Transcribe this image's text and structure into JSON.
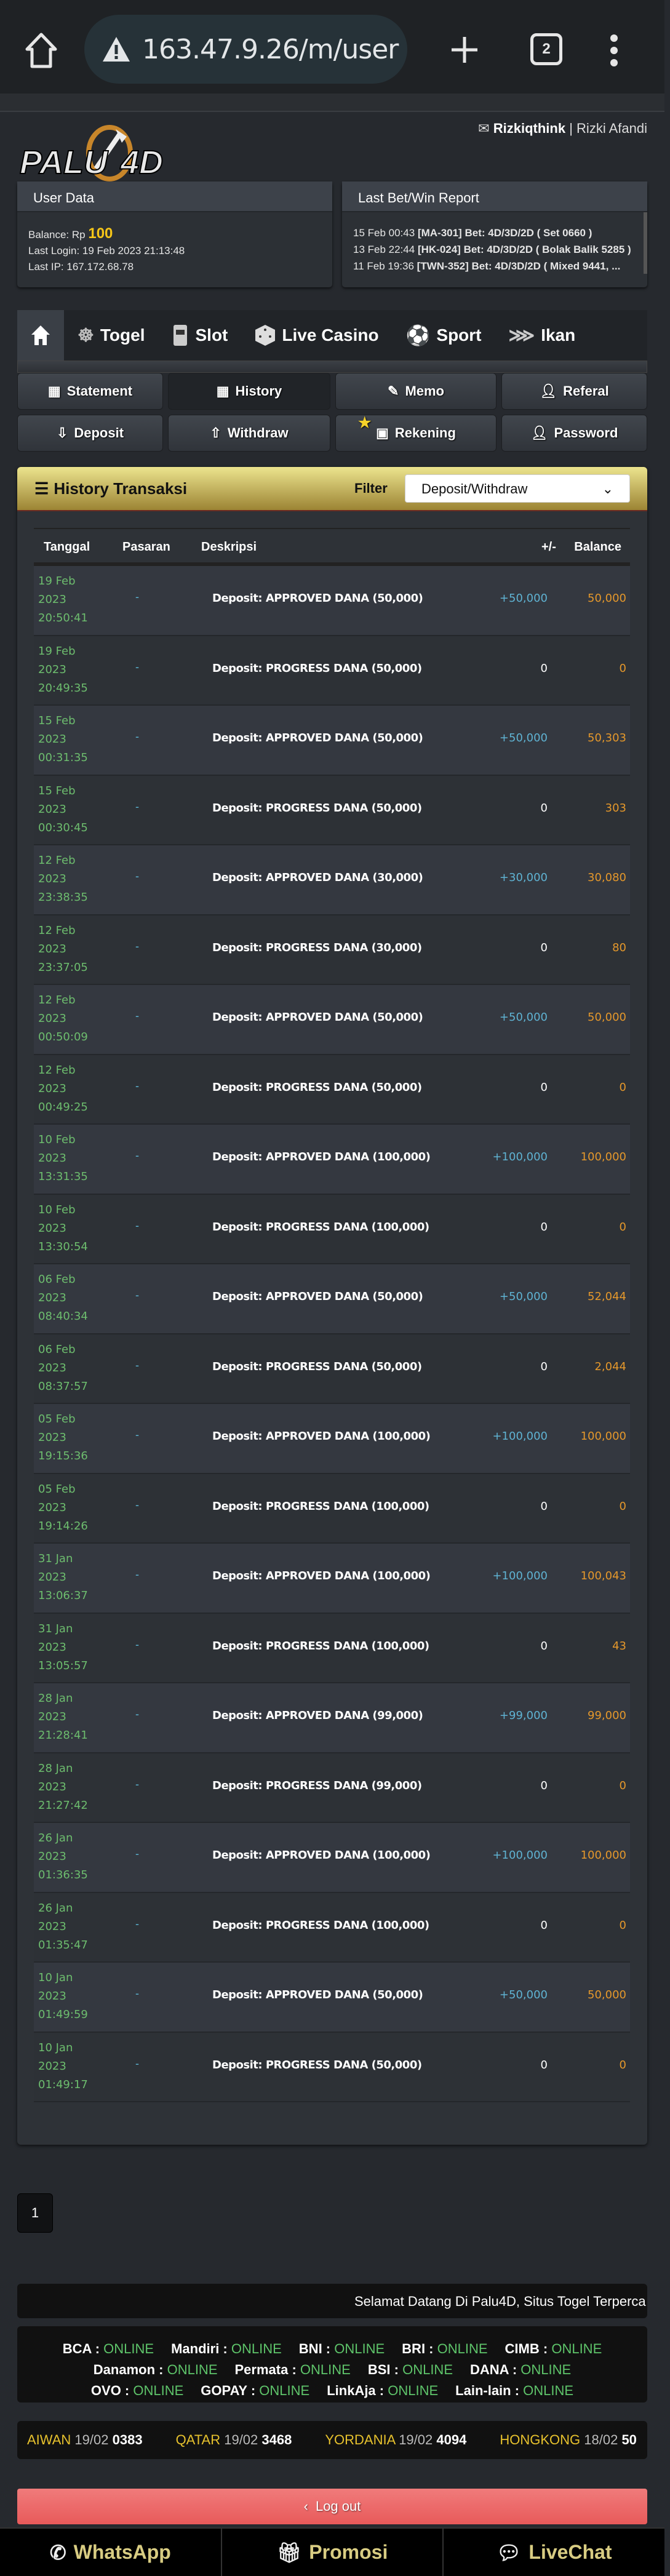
{
  "browser": {
    "url": "163.47.9.26/m/user",
    "tab_count": "2"
  },
  "header": {
    "username": "Rizkiqthink",
    "separator": "|",
    "fullname": "Rizki Afandi",
    "logo_text": "PALU4D"
  },
  "user_data": {
    "title": "User Data",
    "balance_label": "Balance: Rp",
    "balance_value": "100",
    "last_login": "Last Login: 19 Feb 2023 21:13:48",
    "last_ip": "Last IP: 167.172.68.78"
  },
  "last_bet": {
    "title": "Last Bet/Win Report",
    "items": [
      {
        "time": "15 Feb 00:43",
        "code": "[MA-301]",
        "text": "Bet: 4D/3D/2D ( Set 0660 )"
      },
      {
        "time": "13 Feb 22:44",
        "code": "[HK-024]",
        "text": "Bet: 4D/3D/2D ( Bolak Balik 5285 )"
      },
      {
        "time": "11 Feb 19:36",
        "code": "[TWN-352]",
        "text": "Bet: 4D/3D/2D ( Mixed 9441, ..."
      }
    ]
  },
  "tabs": [
    {
      "label": ""
    },
    {
      "label": "Togel"
    },
    {
      "label": "Slot"
    },
    {
      "label": "Live Casino"
    },
    {
      "label": "Sport"
    },
    {
      "label": "Ikan"
    }
  ],
  "buttons": {
    "statement": "Statement",
    "history": "History",
    "memo": "Memo",
    "referal": "Referal",
    "deposit": "Deposit",
    "withdraw": "Withdraw",
    "rekening": "Rekening",
    "password": "Password"
  },
  "history": {
    "title": "History Transaksi",
    "filter_label": "Filter",
    "filter_value": "Deposit/Withdraw",
    "columns": [
      "Tanggal",
      "Pasaran",
      "Deskripsi",
      "+/-",
      "Balance"
    ],
    "rows": [
      {
        "date": "19 Feb",
        "year": "2023",
        "time": "20:50:41",
        "pasaran": "-",
        "desc": "Deposit: APPROVED DANA (50,000)",
        "amount": "+50,000",
        "balance": "50,000"
      },
      {
        "date": "19 Feb",
        "year": "2023",
        "time": "20:49:35",
        "pasaran": "-",
        "desc": "Deposit: PROGRESS DANA (50,000)",
        "amount": "0",
        "balance": "0"
      },
      {
        "date": "15 Feb",
        "year": "2023",
        "time": "00:31:35",
        "pasaran": "-",
        "desc": "Deposit: APPROVED DANA (50,000)",
        "amount": "+50,000",
        "balance": "50,303"
      },
      {
        "date": "15 Feb",
        "year": "2023",
        "time": "00:30:45",
        "pasaran": "-",
        "desc": "Deposit: PROGRESS DANA (50,000)",
        "amount": "0",
        "balance": "303"
      },
      {
        "date": "12 Feb",
        "year": "2023",
        "time": "23:38:35",
        "pasaran": "-",
        "desc": "Deposit: APPROVED DANA (30,000)",
        "amount": "+30,000",
        "balance": "30,080"
      },
      {
        "date": "12 Feb",
        "year": "2023",
        "time": "23:37:05",
        "pasaran": "-",
        "desc": "Deposit: PROGRESS DANA (30,000)",
        "amount": "0",
        "balance": "80"
      },
      {
        "date": "12 Feb",
        "year": "2023",
        "time": "00:50:09",
        "pasaran": "-",
        "desc": "Deposit: APPROVED DANA (50,000)",
        "amount": "+50,000",
        "balance": "50,000"
      },
      {
        "date": "12 Feb",
        "year": "2023",
        "time": "00:49:25",
        "pasaran": "-",
        "desc": "Deposit: PROGRESS DANA (50,000)",
        "amount": "0",
        "balance": "0"
      },
      {
        "date": "10 Feb",
        "year": "2023",
        "time": "13:31:35",
        "pasaran": "-",
        "desc": "Deposit: APPROVED DANA (100,000)",
        "amount": "+100,000",
        "balance": "100,000"
      },
      {
        "date": "10 Feb",
        "year": "2023",
        "time": "13:30:54",
        "pasaran": "-",
        "desc": "Deposit: PROGRESS DANA (100,000)",
        "amount": "0",
        "balance": "0"
      },
      {
        "date": "06 Feb",
        "year": "2023",
        "time": "08:40:34",
        "pasaran": "-",
        "desc": "Deposit: APPROVED DANA (50,000)",
        "amount": "+50,000",
        "balance": "52,044"
      },
      {
        "date": "06 Feb",
        "year": "2023",
        "time": "08:37:57",
        "pasaran": "-",
        "desc": "Deposit: PROGRESS DANA (50,000)",
        "amount": "0",
        "balance": "2,044"
      },
      {
        "date": "05 Feb",
        "year": "2023",
        "time": "19:15:36",
        "pasaran": "-",
        "desc": "Deposit: APPROVED DANA (100,000)",
        "amount": "+100,000",
        "balance": "100,000"
      },
      {
        "date": "05 Feb",
        "year": "2023",
        "time": "19:14:26",
        "pasaran": "-",
        "desc": "Deposit: PROGRESS DANA (100,000)",
        "amount": "0",
        "balance": "0"
      },
      {
        "date": "31 Jan",
        "year": "2023",
        "time": "13:06:37",
        "pasaran": "-",
        "desc": "Deposit: APPROVED DANA (100,000)",
        "amount": "+100,000",
        "balance": "100,043"
      },
      {
        "date": "31 Jan",
        "year": "2023",
        "time": "13:05:57",
        "pasaran": "-",
        "desc": "Deposit: PROGRESS DANA (100,000)",
        "amount": "0",
        "balance": "43"
      },
      {
        "date": "28 Jan",
        "year": "2023",
        "time": "21:28:41",
        "pasaran": "-",
        "desc": "Deposit: APPROVED DANA (99,000)",
        "amount": "+99,000",
        "balance": "99,000"
      },
      {
        "date": "28 Jan",
        "year": "2023",
        "time": "21:27:42",
        "pasaran": "-",
        "desc": "Deposit: PROGRESS DANA (99,000)",
        "amount": "0",
        "balance": "0"
      },
      {
        "date": "26 Jan",
        "year": "2023",
        "time": "01:36:35",
        "pasaran": "-",
        "desc": "Deposit: APPROVED DANA (100,000)",
        "amount": "+100,000",
        "balance": "100,000"
      },
      {
        "date": "26 Jan",
        "year": "2023",
        "time": "01:35:47",
        "pasaran": "-",
        "desc": "Deposit: PROGRESS DANA (100,000)",
        "amount": "0",
        "balance": "0"
      },
      {
        "date": "10 Jan",
        "year": "2023",
        "time": "01:49:59",
        "pasaran": "-",
        "desc": "Deposit: APPROVED DANA (50,000)",
        "amount": "+50,000",
        "balance": "50,000"
      },
      {
        "date": "10 Jan",
        "year": "2023",
        "time": "01:49:17",
        "pasaran": "-",
        "desc": "Deposit: PROGRESS DANA (50,000)",
        "amount": "0",
        "balance": "0"
      }
    ]
  },
  "pagination": {
    "current": "1"
  },
  "marquee": "Selamat Datang Di Palu4D, Situs Togel Terperca",
  "banks": [
    {
      "name": "BCA",
      "status": "ONLINE"
    },
    {
      "name": "Mandiri",
      "status": "ONLINE"
    },
    {
      "name": "BNI",
      "status": "ONLINE"
    },
    {
      "name": "BRI",
      "status": "ONLINE"
    },
    {
      "name": "CIMB",
      "status": "ONLINE"
    },
    {
      "name": "Danamon",
      "status": "ONLINE"
    },
    {
      "name": "Permata",
      "status": "ONLINE"
    },
    {
      "name": "BSI",
      "status": "ONLINE"
    },
    {
      "name": "DANA",
      "status": "ONLINE"
    },
    {
      "name": "OVO",
      "status": "ONLINE"
    },
    {
      "name": "GOPAY",
      "status": "ONLINE"
    },
    {
      "name": "LinkAja",
      "status": "ONLINE"
    },
    {
      "name": "Lain-lain",
      "status": "ONLINE"
    }
  ],
  "results": [
    {
      "market": "AIWAN",
      "date": "19/02",
      "number": "0383"
    },
    {
      "market": "QATAR",
      "date": "19/02",
      "number": "3468"
    },
    {
      "market": "YORDANIA",
      "date": "19/02",
      "number": "4094"
    },
    {
      "market": "HONGKONG",
      "date": "18/02",
      "number": "50"
    }
  ],
  "logout": "Log out",
  "bottom_nav": {
    "whatsapp": "WhatsApp",
    "promosi": "Promosi",
    "livechat": "LiveChat"
  },
  "colors": {
    "date": "#6dbd6e",
    "amount": "#5fb3d3",
    "balance": "#e5982b",
    "balance_value": "#f5c518",
    "online": "#5ec46a",
    "gold": "#d8cc82",
    "logout": "#ea6262"
  }
}
